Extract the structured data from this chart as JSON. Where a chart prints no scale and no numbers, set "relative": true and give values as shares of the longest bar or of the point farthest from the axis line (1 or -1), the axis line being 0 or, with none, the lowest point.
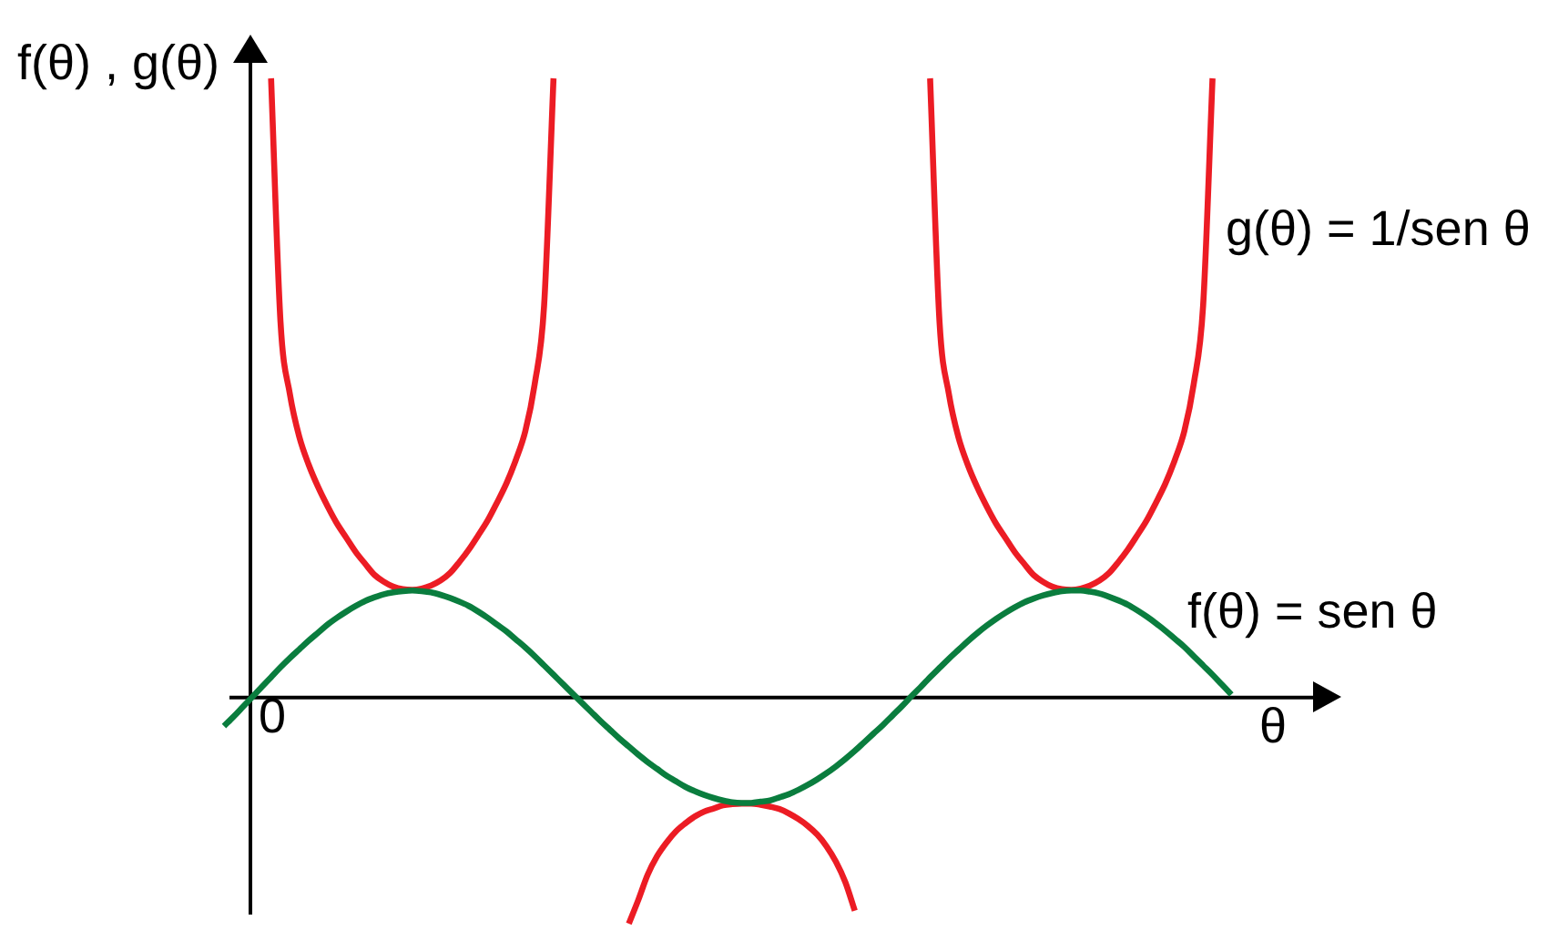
{
  "chart_data": {
    "type": "line",
    "xlabel": "θ",
    "ylabel": "f(θ) , g(θ)",
    "annotations": [
      "0"
    ],
    "relative": true,
    "legend": false,
    "grid": false,
    "marker": "none",
    "line_style": "solid",
    "categories": [
      null,
      null,
      null,
      null,
      null,
      null,
      null,
      null,
      null,
      null,
      null,
      null,
      null,
      null,
      null,
      null,
      null,
      null,
      null,
      null,
      null,
      null,
      null,
      null,
      null,
      null,
      null,
      null,
      null,
      null,
      null,
      null,
      null,
      null,
      null,
      null,
      null,
      null,
      null,
      null,
      null,
      null,
      null,
      null,
      null,
      null,
      null,
      null,
      null,
      null,
      null,
      null,
      null,
      null,
      null,
      null,
      null,
      null,
      null,
      null,
      null,
      null,
      null,
      null,
      null,
      null,
      null,
      null,
      null,
      null,
      null,
      null,
      null,
      null,
      null,
      null,
      null,
      null,
      null,
      null,
      null,
      null,
      null,
      null,
      null,
      null,
      null,
      null,
      null,
      null,
      null,
      null,
      null,
      null,
      null,
      null,
      null,
      null,
      null,
      null,
      null,
      null,
      null,
      null,
      null,
      null,
      null,
      null,
      null,
      null,
      null,
      null,
      null,
      null,
      null,
      null,
      null,
      null,
      null
    ],
    "series": [
      {
        "name": "f(θ) = sen θ",
        "color": "#0a7d3e",
        "values": [
          -0.046,
          -0.031,
          -0.015,
          0.001,
          0.017,
          0.033,
          0.049,
          0.064,
          0.078,
          0.092,
          0.105,
          0.118,
          0.129,
          0.139,
          0.148,
          0.156,
          0.162,
          0.167,
          0.17,
          0.172,
          0.173,
          0.172,
          0.17,
          0.166,
          0.161,
          0.155,
          0.148,
          0.139,
          0.129,
          0.118,
          0.107,
          0.094,
          0.081,
          0.067,
          0.052,
          0.037,
          0.022,
          0.007,
          -0.008,
          -0.023,
          -0.038,
          -0.052,
          -0.066,
          -0.079,
          -0.092,
          -0.104,
          -0.115,
          -0.126,
          -0.135,
          -0.144,
          -0.151,
          -0.157,
          -0.162,
          -0.166,
          -0.169,
          -0.17,
          -0.17,
          -0.168,
          -0.166,
          -0.161,
          -0.156,
          -0.149,
          -0.141,
          -0.132,
          -0.122,
          -0.111,
          -0.099,
          -0.086,
          -0.072,
          -0.058,
          -0.044,
          -0.029,
          -0.014,
          0.002,
          0.017,
          0.033,
          0.048,
          0.063,
          0.077,
          0.091,
          0.104,
          0.116,
          0.127,
          0.137,
          0.146,
          0.154,
          0.16,
          0.165,
          0.169,
          0.172,
          0.173,
          0.173,
          0.171,
          0.168,
          0.163,
          0.157,
          0.15,
          0.141,
          0.131,
          0.12,
          0.108,
          0.095,
          0.082,
          0.067,
          0.052,
          0.037,
          0.021,
          0.005,
          null,
          null,
          null,
          null,
          null,
          null,
          null,
          null,
          null,
          null,
          null
        ]
      },
      {
        "name": "g(θ) = 1/sen θ",
        "color": "#ec1c24",
        "values": [
          null,
          null,
          null,
          null,
          null,
          1.0,
          0.607,
          0.49,
          0.421,
          0.376,
          0.34,
          0.309,
          0.281,
          0.258,
          0.235,
          0.216,
          0.198,
          0.187,
          0.179,
          0.175,
          0.174,
          0.176,
          0.181,
          0.189,
          0.201,
          0.219,
          0.239,
          0.262,
          0.286,
          0.315,
          0.346,
          0.384,
          0.43,
          0.506,
          0.633,
          1.0,
          null,
          null,
          null,
          null,
          null,
          null,
          null,
          -0.365,
          -0.327,
          -0.286,
          -0.256,
          -0.234,
          -0.216,
          -0.203,
          -0.192,
          -0.184,
          -0.179,
          -0.174,
          -0.172,
          -0.171,
          -0.171,
          -0.173,
          -0.176,
          -0.18,
          -0.187,
          -0.196,
          -0.207,
          -0.221,
          -0.24,
          -0.265,
          -0.298,
          -0.344,
          null,
          null,
          null,
          null,
          null,
          null,
          null,
          1.0,
          0.607,
          0.49,
          0.421,
          0.376,
          0.34,
          0.309,
          0.281,
          0.258,
          0.235,
          0.216,
          0.198,
          0.187,
          0.179,
          0.175,
          0.174,
          0.176,
          0.181,
          0.189,
          0.201,
          0.219,
          0.239,
          0.262,
          0.286,
          0.315,
          0.346,
          0.384,
          0.43,
          0.506,
          0.633,
          1.0,
          null,
          null,
          null,
          null,
          null,
          null,
          null,
          null,
          null,
          null,
          null,
          null,
          null
        ]
      }
    ]
  }
}
